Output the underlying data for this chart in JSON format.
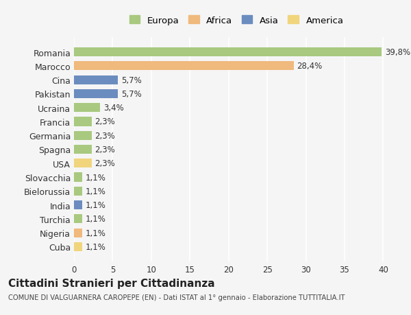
{
  "categories": [
    "Romania",
    "Marocco",
    "Cina",
    "Pakistan",
    "Ucraina",
    "Francia",
    "Germania",
    "Spagna",
    "USA",
    "Slovacchia",
    "Bielorussia",
    "India",
    "Turchia",
    "Nigeria",
    "Cuba"
  ],
  "values": [
    39.8,
    28.4,
    5.7,
    5.7,
    3.4,
    2.3,
    2.3,
    2.3,
    2.3,
    1.1,
    1.1,
    1.1,
    1.1,
    1.1,
    1.1
  ],
  "labels": [
    "39,8%",
    "28,4%",
    "5,7%",
    "5,7%",
    "3,4%",
    "2,3%",
    "2,3%",
    "2,3%",
    "2,3%",
    "1,1%",
    "1,1%",
    "1,1%",
    "1,1%",
    "1,1%",
    "1,1%"
  ],
  "continents": [
    "Europa",
    "Africa",
    "Asia",
    "Asia",
    "Europa",
    "Europa",
    "Europa",
    "Europa",
    "America",
    "Europa",
    "Europa",
    "Asia",
    "Europa",
    "Africa",
    "America"
  ],
  "continent_colors": {
    "Europa": "#a8c97f",
    "Africa": "#f0b97d",
    "Asia": "#6b8cbf",
    "America": "#f0d57d"
  },
  "legend_order": [
    "Europa",
    "Africa",
    "Asia",
    "America"
  ],
  "title": "Cittadini Stranieri per Cittadinanza",
  "subtitle": "COMUNE DI VALGUARNERA CAROPEPE (EN) - Dati ISTAT al 1° gennaio - Elaborazione TUTTITALIA.IT",
  "xlim": [
    0,
    42
  ],
  "xticks": [
    0,
    5,
    10,
    15,
    20,
    25,
    30,
    35,
    40
  ],
  "background_color": "#f5f5f5",
  "grid_color": "#ffffff",
  "bar_height": 0.65
}
